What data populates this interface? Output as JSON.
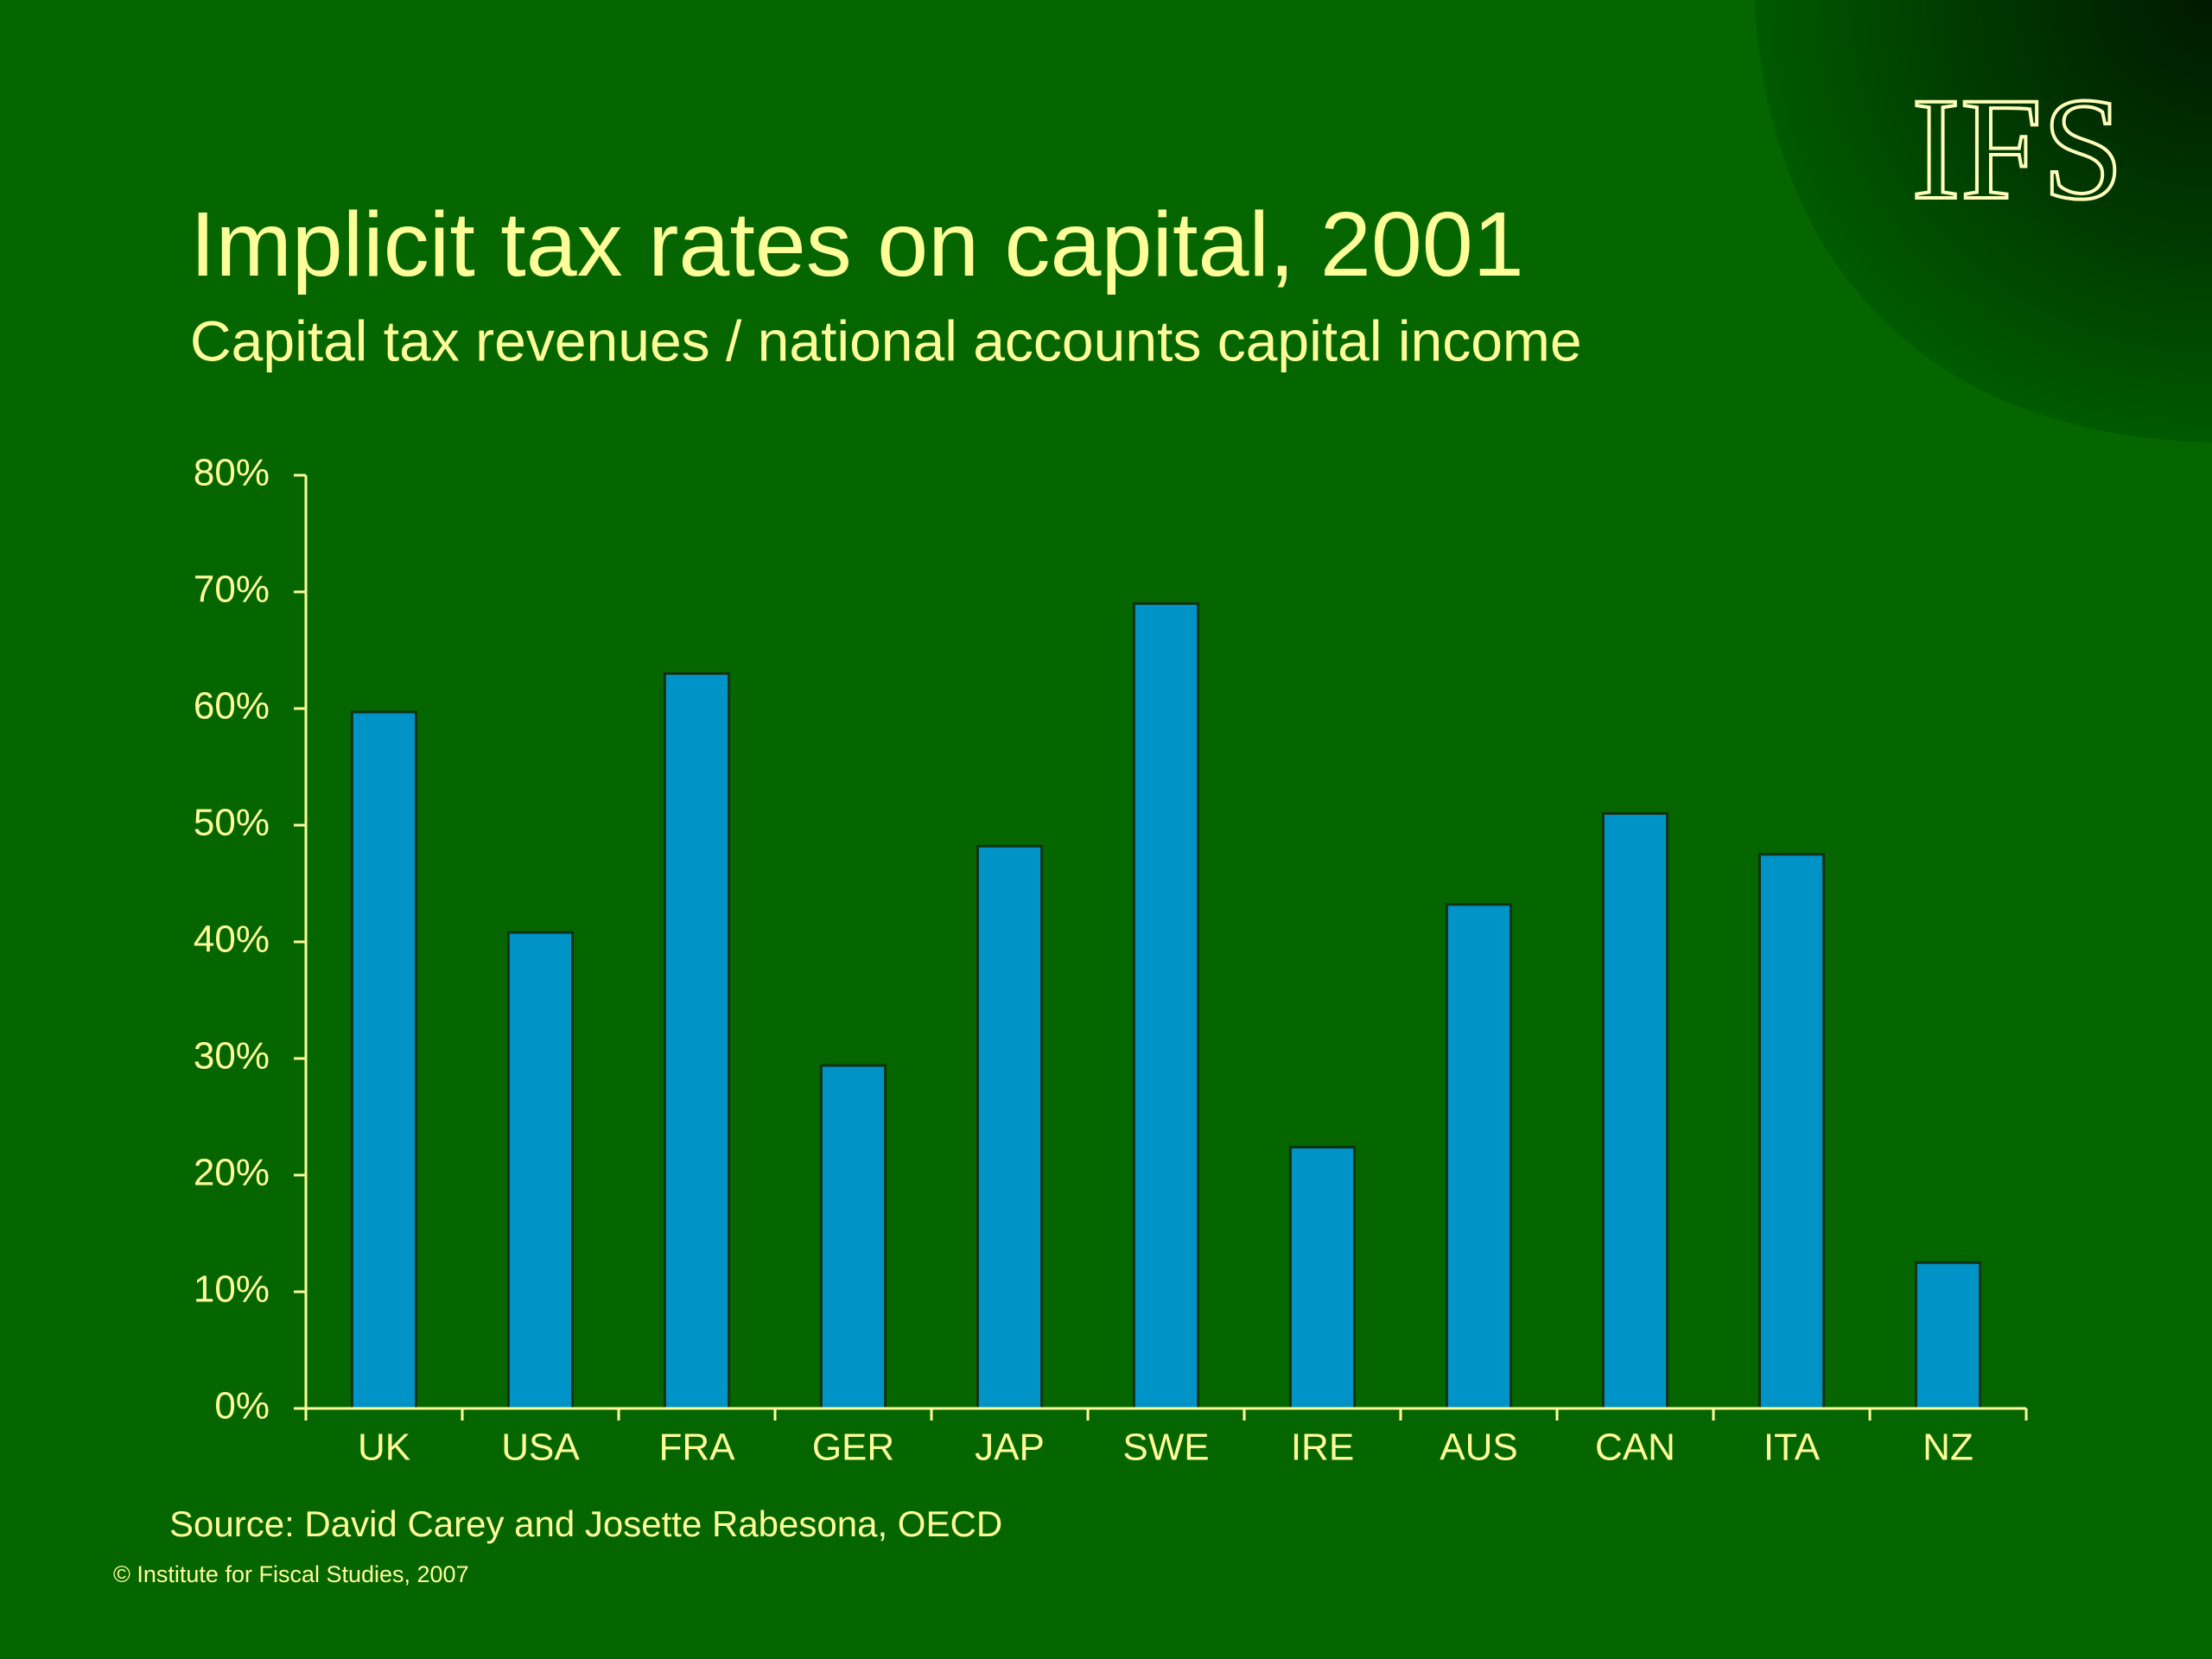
{
  "logo": "IFS",
  "chart_data": {
    "type": "bar",
    "title": "Implicit tax rates on capital, 2001",
    "subtitle": "Capital tax revenues / national accounts capital income",
    "source": "Source: David Carey and Josette Rabesona, OECD",
    "copyright": "© Institute for Fiscal Studies, 2007",
    "categories": [
      "UK",
      "USA",
      "FRA",
      "GER",
      "JAP",
      "SWE",
      "IRE",
      "AUS",
      "CAN",
      "ITA",
      "NZ"
    ],
    "values": [
      59.7,
      40.8,
      63.0,
      29.4,
      48.2,
      69.0,
      22.4,
      43.2,
      51.0,
      47.5,
      12.5
    ],
    "color": "#0093c8",
    "ylim": [
      0,
      80
    ],
    "yticks": [
      {
        "value": 0,
        "label": "0%"
      },
      {
        "value": 10,
        "label": "10%"
      },
      {
        "value": 20,
        "label": "20%"
      },
      {
        "value": 30,
        "label": "30%"
      },
      {
        "value": 40,
        "label": "40%"
      },
      {
        "value": 50,
        "label": "50%"
      },
      {
        "value": 60,
        "label": "60%"
      },
      {
        "value": 70,
        "label": "70%"
      },
      {
        "value": 80,
        "label": "80%"
      }
    ],
    "grid": false
  }
}
